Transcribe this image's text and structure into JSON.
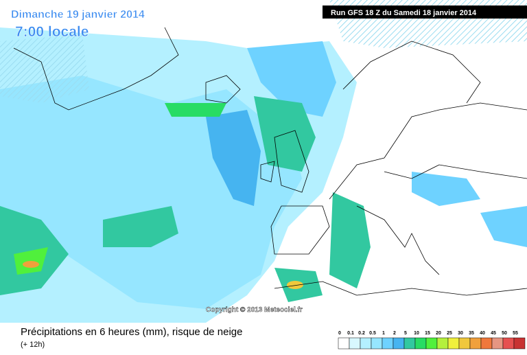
{
  "header": {
    "date": "Dimanche 19 janvier 2014",
    "time": "7:00 locale",
    "run": "Run GFS 18 Z du Samedi 18 janvier 2014"
  },
  "copyright": "Copyright © 2013 Meteociel.fr",
  "footer": {
    "title": "Précipitations en 6 heures (mm), risque de neige",
    "lead": "(+ 12h)"
  },
  "legend": {
    "labels": [
      "0",
      "0.1",
      "0.2",
      "0.5",
      "1",
      "2",
      "5",
      "10",
      "15",
      "20",
      "25",
      "30",
      "35",
      "40",
      "45",
      "50",
      "55"
    ],
    "colors": [
      "#ffffff",
      "#d8f8ff",
      "#b4f0ff",
      "#96e6ff",
      "#6ed2ff",
      "#46b4f0",
      "#32c8a0",
      "#28dc64",
      "#50f03c",
      "#b4f03c",
      "#f0f03c",
      "#f0c83c",
      "#f0a03c",
      "#f0783c",
      "#e69682",
      "#e65050",
      "#c83232"
    ]
  }
}
